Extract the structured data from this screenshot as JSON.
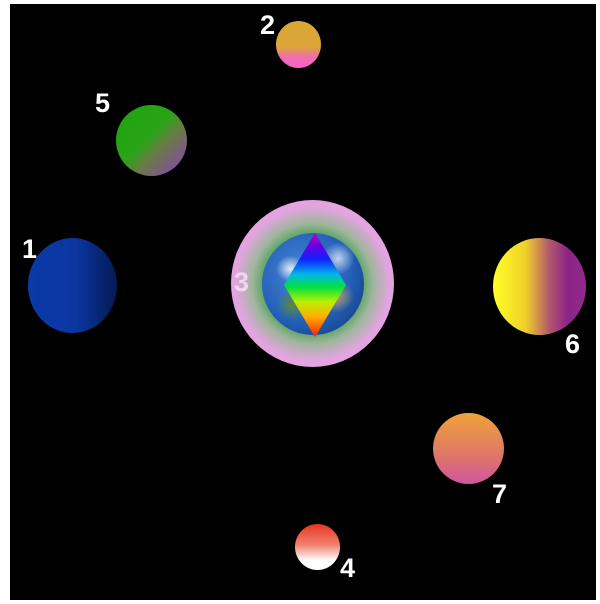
{
  "scene": {
    "background_color": "#000000",
    "bodies": [
      {
        "id": "1",
        "label": "1",
        "kind": "planet",
        "colors": [
          "#0a3aa8",
          "#041a52"
        ]
      },
      {
        "id": "2",
        "label": "2",
        "kind": "planet",
        "colors": [
          "#d8a832",
          "#ff5fc8"
        ]
      },
      {
        "id": "3",
        "label": "3",
        "kind": "earth-with-halo-and-rainbow-diamond",
        "colors": [
          "#f09cec",
          "#2a9030"
        ]
      },
      {
        "id": "4",
        "label": "4",
        "kind": "planet",
        "colors": [
          "#e8361e",
          "#ffffff"
        ]
      },
      {
        "id": "5",
        "label": "5",
        "kind": "planet",
        "colors": [
          "#1fa30e",
          "#8a3cc6"
        ]
      },
      {
        "id": "6",
        "label": "6",
        "kind": "planet",
        "colors": [
          "#ffff26",
          "#922a8e"
        ]
      },
      {
        "id": "7",
        "label": "7",
        "kind": "planet",
        "colors": [
          "#f0a23c",
          "#d056a0"
        ]
      }
    ]
  }
}
